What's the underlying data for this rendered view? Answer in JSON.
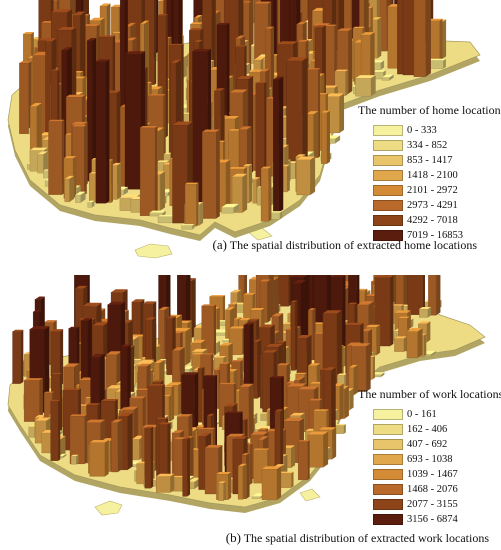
{
  "panels": [
    {
      "id": "a",
      "legend_title": "The number of home locations",
      "classes": [
        {
          "label": "0 - 333",
          "color": "#f6f19e"
        },
        {
          "label": "334 - 852",
          "color": "#eddc84"
        },
        {
          "label": "853 - 1417",
          "color": "#e8c56a"
        },
        {
          "label": "1418 - 2100",
          "color": "#e1a74c"
        },
        {
          "label": "2101 - 2972",
          "color": "#d48b36"
        },
        {
          "label": "2973 - 4291",
          "color": "#b9692a"
        },
        {
          "label": "4292 - 7018",
          "color": "#8e4419"
        },
        {
          "label": "7019 - 16853",
          "color": "#5a1d0e"
        }
      ],
      "caption_tag": "(a)",
      "caption_text": "The spatial distribution of extracted home locations"
    },
    {
      "id": "b",
      "legend_title": "The number of work locations",
      "classes": [
        {
          "label": "0 - 161",
          "color": "#f6f19e"
        },
        {
          "label": "162 - 406",
          "color": "#eddc84"
        },
        {
          "label": "407 - 692",
          "color": "#e8c56a"
        },
        {
          "label": "693 - 1038",
          "color": "#e1a74c"
        },
        {
          "label": "1039 - 1467",
          "color": "#d48b36"
        },
        {
          "label": "1468 - 2076",
          "color": "#b9692a"
        },
        {
          "label": "2077 - 3155",
          "color": "#8e4419"
        },
        {
          "label": "3156 - 6874",
          "color": "#5a1d0e"
        }
      ],
      "caption_tag": "(b)",
      "caption_text": "The spatial distribution of extracted work locations"
    }
  ]
}
